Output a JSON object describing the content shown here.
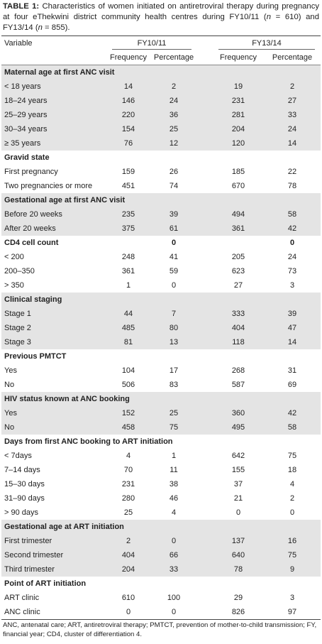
{
  "caption": {
    "label": "TABLE 1:",
    "parts": [
      "Characteristics of women initiated on antiretroviral therapy during pregnancy at four eThekwini district community health centres during FY10/11 (",
      "n",
      " = 610) and FY13/14 (",
      "n",
      " = 855)."
    ]
  },
  "table": {
    "header": {
      "variable": "Variable",
      "groups": [
        "FY10/11",
        "FY13/14"
      ],
      "subheaders": [
        "Frequency",
        "Percentage",
        "Frequency",
        "Percentage"
      ]
    },
    "sections": [
      {
        "title": "Maternal age at first ANC visit",
        "rows": [
          [
            "< 18 years",
            14,
            2,
            19,
            2
          ],
          [
            "18–24 years",
            146,
            24,
            231,
            27
          ],
          [
            "25–29 years",
            220,
            36,
            281,
            33
          ],
          [
            "30–34 years",
            154,
            25,
            204,
            24
          ],
          [
            "≥ 35 years",
            76,
            12,
            120,
            14
          ]
        ]
      },
      {
        "title": "Gravid state",
        "rows": [
          [
            "First pregnancy",
            159,
            26,
            185,
            22
          ],
          [
            "Two pregnancies or more",
            451,
            74,
            670,
            78
          ]
        ]
      },
      {
        "title": "Gestational age at first ANC visit",
        "rows": [
          [
            "Before 20 weeks",
            235,
            39,
            494,
            58
          ],
          [
            "After 20 weeks",
            375,
            61,
            361,
            42
          ]
        ]
      },
      {
        "title": "CD4 cell count",
        "title_cells": [
          null,
          0,
          null,
          0
        ],
        "rows": [
          [
            "< 200",
            248,
            41,
            205,
            24
          ],
          [
            "200–350",
            361,
            59,
            623,
            73
          ],
          [
            "> 350",
            1,
            0,
            27,
            3
          ]
        ]
      },
      {
        "title": "Clinical staging",
        "rows": [
          [
            "Stage 1",
            44,
            7,
            333,
            39
          ],
          [
            "Stage 2",
            485,
            80,
            404,
            47
          ],
          [
            "Stage 3",
            81,
            13,
            118,
            14
          ]
        ]
      },
      {
        "title": "Previous PMTCT",
        "rows": [
          [
            "Yes",
            104,
            17,
            268,
            31
          ],
          [
            "No",
            506,
            83,
            587,
            69
          ]
        ]
      },
      {
        "title": "HIV status known at ANC booking",
        "rows": [
          [
            "Yes",
            152,
            25,
            360,
            42
          ],
          [
            "No",
            458,
            75,
            495,
            58
          ]
        ]
      },
      {
        "title": "Days from first ANC booking to ART initiation",
        "rows": [
          [
            "< 7days",
            4,
            1,
            642,
            75
          ],
          [
            "7–14 days",
            70,
            11,
            155,
            18
          ],
          [
            "15–30 days",
            231,
            38,
            37,
            4
          ],
          [
            "31–90 days",
            280,
            46,
            21,
            2
          ],
          [
            "> 90 days",
            25,
            4,
            0,
            0
          ]
        ]
      },
      {
        "title": "Gestational age at ART initiation",
        "rows": [
          [
            "First trimester",
            2,
            0,
            137,
            16
          ],
          [
            "Second trimester",
            404,
            66,
            640,
            75
          ],
          [
            "Third trimester",
            204,
            33,
            78,
            9
          ]
        ]
      },
      {
        "title": "Point of ART initiation",
        "rows": [
          [
            "ART clinic",
            610,
            100,
            29,
            3
          ],
          [
            "ANC clinic",
            0,
            0,
            826,
            97
          ]
        ]
      }
    ]
  },
  "footnote": "ANC, antenatal care; ART, antiretroviral therapy; PMTCT, prevention of mother-to-child transmission; FY, financial year; CD4, cluster of differentiation 4."
}
